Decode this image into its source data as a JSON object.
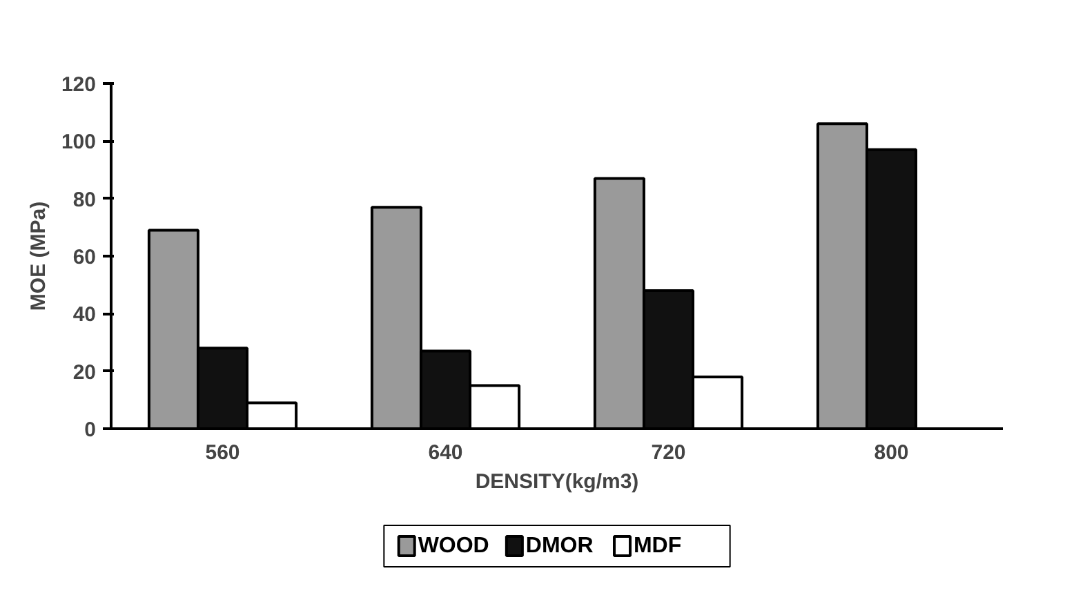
{
  "chart_data": {
    "type": "bar",
    "xlabel": "DENSITY(kg/m3)",
    "ylabel": "MOE (MPa)",
    "categories": [
      "560",
      "640",
      "720",
      "800"
    ],
    "series": [
      {
        "name": "WOOD",
        "color": "#9a9a9a",
        "values": [
          69,
          77,
          87,
          106
        ]
      },
      {
        "name": "DMOR",
        "color": "#111111",
        "values": [
          28,
          27,
          48,
          97
        ]
      },
      {
        "name": "MDF",
        "color": "#ffffff",
        "values": [
          9,
          15,
          18,
          null
        ]
      }
    ],
    "ylim": [
      0,
      120
    ],
    "yticks": [
      0,
      20,
      40,
      60,
      80,
      100,
      120
    ],
    "grid": false,
    "legend": "bottom"
  }
}
